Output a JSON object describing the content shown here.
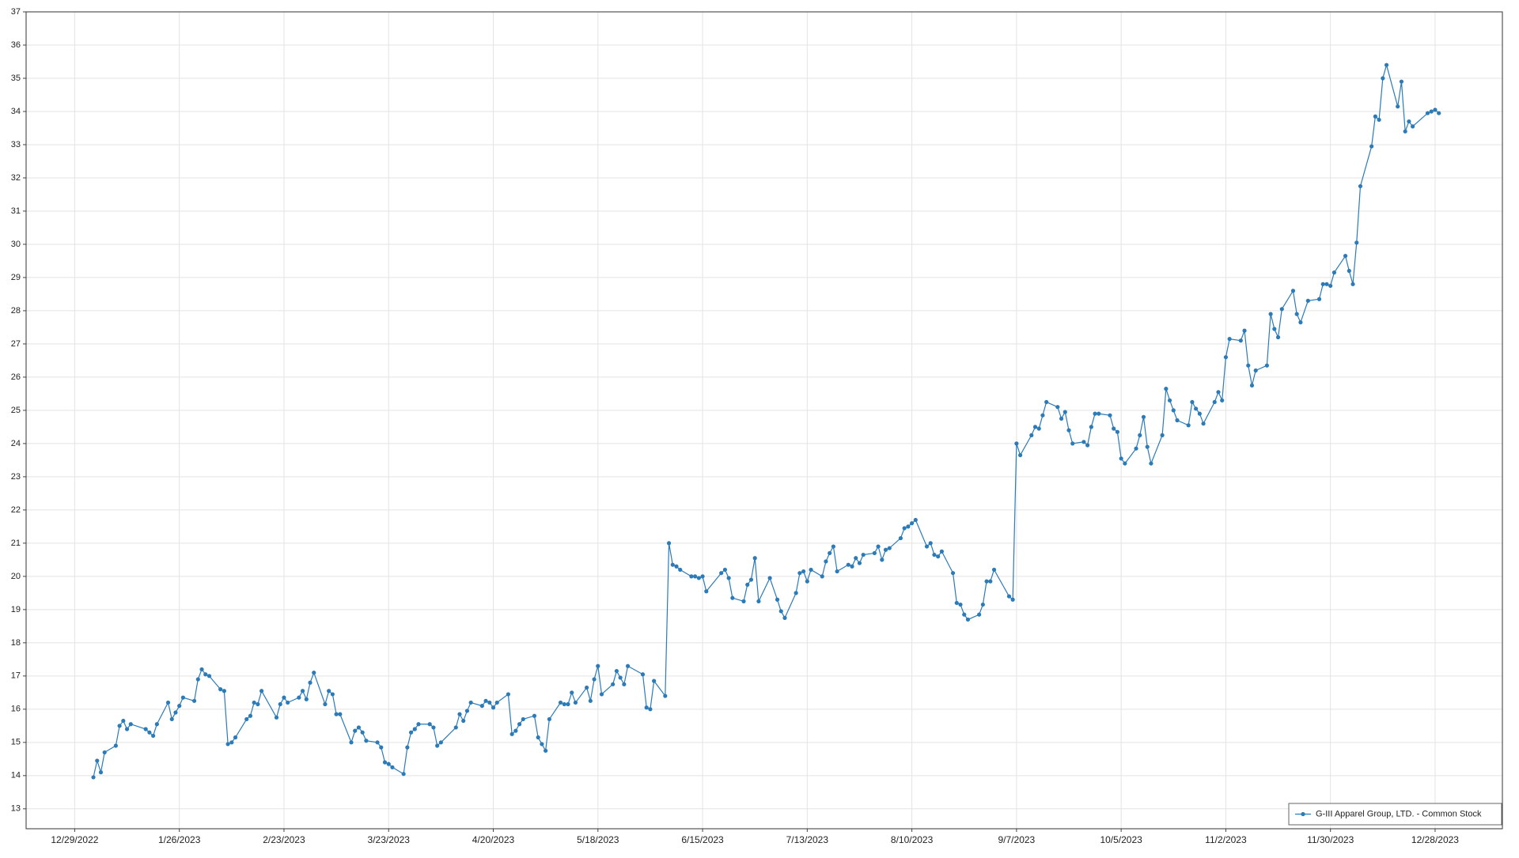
{
  "chart_data": {
    "type": "line",
    "x": [
      "1/3/2023",
      "1/4/2023",
      "1/5/2023",
      "1/6/2023",
      "1/9/2023",
      "1/10/2023",
      "1/11/2023",
      "1/12/2023",
      "1/13/2023",
      "1/17/2023",
      "1/18/2023",
      "1/19/2023",
      "1/20/2023",
      "1/23/2023",
      "1/24/2023",
      "1/25/2023",
      "1/26/2023",
      "1/27/2023",
      "1/30/2023",
      "1/31/2023",
      "2/1/2023",
      "2/2/2023",
      "2/3/2023",
      "2/6/2023",
      "2/7/2023",
      "2/8/2023",
      "2/9/2023",
      "2/10/2023",
      "2/13/2023",
      "2/14/2023",
      "2/15/2023",
      "2/16/2023",
      "2/17/2023",
      "2/21/2023",
      "2/22/2023",
      "2/23/2023",
      "2/24/2023",
      "2/27/2023",
      "2/28/2023",
      "3/1/2023",
      "3/2/2023",
      "3/3/2023",
      "3/6/2023",
      "3/7/2023",
      "3/8/2023",
      "3/9/2023",
      "3/10/2023",
      "3/13/2023",
      "3/14/2023",
      "3/15/2023",
      "3/16/2023",
      "3/17/2023",
      "3/20/2023",
      "3/21/2023",
      "3/22/2023",
      "3/23/2023",
      "3/24/2023",
      "3/27/2023",
      "3/28/2023",
      "3/29/2023",
      "3/30/2023",
      "3/31/2023",
      "4/3/2023",
      "4/4/2023",
      "4/5/2023",
      "4/6/2023",
      "4/10/2023",
      "4/11/2023",
      "4/12/2023",
      "4/13/2023",
      "4/14/2023",
      "4/17/2023",
      "4/18/2023",
      "4/19/2023",
      "4/20/2023",
      "4/21/2023",
      "4/24/2023",
      "4/25/2023",
      "4/26/2023",
      "4/27/2023",
      "4/28/2023",
      "5/1/2023",
      "5/2/2023",
      "5/3/2023",
      "5/4/2023",
      "5/5/2023",
      "5/8/2023",
      "5/9/2023",
      "5/10/2023",
      "5/11/2023",
      "5/12/2023",
      "5/15/2023",
      "5/16/2023",
      "5/17/2023",
      "5/18/2023",
      "5/19/2023",
      "5/22/2023",
      "5/23/2023",
      "5/24/2023",
      "5/25/2023",
      "5/26/2023",
      "5/30/2023",
      "5/31/2023",
      "6/1/2023",
      "6/2/2023",
      "6/5/2023",
      "6/6/2023",
      "6/7/2023",
      "6/8/2023",
      "6/9/2023",
      "6/12/2023",
      "6/13/2023",
      "6/14/2023",
      "6/15/2023",
      "6/16/2023",
      "6/20/2023",
      "6/21/2023",
      "6/22/2023",
      "6/23/2023",
      "6/26/2023",
      "6/27/2023",
      "6/28/2023",
      "6/29/2023",
      "6/30/2023",
      "7/3/2023",
      "7/5/2023",
      "7/6/2023",
      "7/7/2023",
      "7/10/2023",
      "7/11/2023",
      "7/12/2023",
      "7/13/2023",
      "7/14/2023",
      "7/17/2023",
      "7/18/2023",
      "7/19/2023",
      "7/20/2023",
      "7/21/2023",
      "7/24/2023",
      "7/25/2023",
      "7/26/2023",
      "7/27/2023",
      "7/28/2023",
      "7/31/2023",
      "8/1/2023",
      "8/2/2023",
      "8/3/2023",
      "8/4/2023",
      "8/7/2023",
      "8/8/2023",
      "8/9/2023",
      "8/10/2023",
      "8/11/2023",
      "8/14/2023",
      "8/15/2023",
      "8/16/2023",
      "8/17/2023",
      "8/18/2023",
      "8/21/2023",
      "8/22/2023",
      "8/23/2023",
      "8/24/2023",
      "8/25/2023",
      "8/28/2023",
      "8/29/2023",
      "8/30/2023",
      "8/31/2023",
      "9/1/2023",
      "9/5/2023",
      "9/6/2023",
      "9/7/2023",
      "9/8/2023",
      "9/11/2023",
      "9/12/2023",
      "9/13/2023",
      "9/14/2023",
      "9/15/2023",
      "9/18/2023",
      "9/19/2023",
      "9/20/2023",
      "9/21/2023",
      "9/22/2023",
      "9/25/2023",
      "9/26/2023",
      "9/27/2023",
      "9/28/2023",
      "9/29/2023",
      "10/2/2023",
      "10/3/2023",
      "10/4/2023",
      "10/5/2023",
      "10/6/2023",
      "10/9/2023",
      "10/10/2023",
      "10/11/2023",
      "10/12/2023",
      "10/13/2023",
      "10/16/2023",
      "10/17/2023",
      "10/18/2023",
      "10/19/2023",
      "10/20/2023",
      "10/23/2023",
      "10/24/2023",
      "10/25/2023",
      "10/26/2023",
      "10/27/2023",
      "10/30/2023",
      "10/31/2023",
      "11/1/2023",
      "11/2/2023",
      "11/3/2023",
      "11/6/2023",
      "11/7/2023",
      "11/8/2023",
      "11/9/2023",
      "11/10/2023",
      "11/13/2023",
      "11/14/2023",
      "11/15/2023",
      "11/16/2023",
      "11/17/2023",
      "11/20/2023",
      "11/21/2023",
      "11/22/2023",
      "11/24/2023",
      "11/27/2023",
      "11/28/2023",
      "11/29/2023",
      "11/30/2023",
      "12/1/2023",
      "12/4/2023",
      "12/5/2023",
      "12/6/2023",
      "12/7/2023",
      "12/8/2023",
      "12/11/2023",
      "12/12/2023",
      "12/13/2023",
      "12/14/2023",
      "12/15/2023",
      "12/18/2023",
      "12/19/2023",
      "12/20/2023",
      "12/21/2023",
      "12/22/2023",
      "12/26/2023",
      "12/27/2023",
      "12/28/2023",
      "12/29/2023"
    ],
    "series": [
      {
        "name": "G-III Apparel Group, LTD. - Common Stock",
        "color": "#2b7bb9",
        "values": [
          13.95,
          14.45,
          14.1,
          14.7,
          14.9,
          15.5,
          15.65,
          15.4,
          15.55,
          15.4,
          15.3,
          15.2,
          15.55,
          16.2,
          15.7,
          15.9,
          16.1,
          16.35,
          16.25,
          16.9,
          17.2,
          17.05,
          17.0,
          16.6,
          16.55,
          14.95,
          15.0,
          15.15,
          15.7,
          15.8,
          16.2,
          16.15,
          16.55,
          15.75,
          16.15,
          16.35,
          16.2,
          16.35,
          16.55,
          16.3,
          16.8,
          17.1,
          16.15,
          16.55,
          16.45,
          15.85,
          15.85,
          15.0,
          15.35,
          15.45,
          15.3,
          15.05,
          15.0,
          14.85,
          14.4,
          14.35,
          14.25,
          14.05,
          14.85,
          15.3,
          15.4,
          15.55,
          15.55,
          15.45,
          14.9,
          15.0,
          15.45,
          15.85,
          15.65,
          15.95,
          16.2,
          16.1,
          16.25,
          16.2,
          16.05,
          16.2,
          16.45,
          15.25,
          15.35,
          15.55,
          15.7,
          15.8,
          15.15,
          14.95,
          14.75,
          15.7,
          16.2,
          16.15,
          16.15,
          16.5,
          16.2,
          16.65,
          16.25,
          16.9,
          17.3,
          16.45,
          16.75,
          17.15,
          16.95,
          16.75,
          17.3,
          17.05,
          16.05,
          16.0,
          16.85,
          16.4,
          21.0,
          20.35,
          20.3,
          20.2,
          20.0,
          20.0,
          19.95,
          20.0,
          19.55,
          20.1,
          20.2,
          19.95,
          19.35,
          19.25,
          19.75,
          19.9,
          20.55,
          19.25,
          19.95,
          19.3,
          18.95,
          18.75,
          19.5,
          20.1,
          20.15,
          19.85,
          20.2,
          20.0,
          20.45,
          20.7,
          20.9,
          20.15,
          20.35,
          20.3,
          20.55,
          20.4,
          20.65,
          20.7,
          20.9,
          20.5,
          20.8,
          20.85,
          21.15,
          21.45,
          21.5,
          21.6,
          21.7,
          20.9,
          21.0,
          20.65,
          20.6,
          20.75,
          20.1,
          19.2,
          19.15,
          18.85,
          18.7,
          18.85,
          19.15,
          19.85,
          19.85,
          20.2,
          19.4,
          19.3,
          24.0,
          23.65,
          24.25,
          24.5,
          24.45,
          24.85,
          25.25,
          25.1,
          24.75,
          24.95,
          24.4,
          24.0,
          24.05,
          23.95,
          24.5,
          24.9,
          24.9,
          24.85,
          24.45,
          24.35,
          23.55,
          23.4,
          23.85,
          24.25,
          24.8,
          23.9,
          23.4,
          24.25,
          25.65,
          25.3,
          25.0,
          24.7,
          24.55,
          25.25,
          25.05,
          24.9,
          24.6,
          25.25,
          25.55,
          25.3,
          26.6,
          27.15,
          27.1,
          27.4,
          26.35,
          25.75,
          26.2,
          26.35,
          27.9,
          27.45,
          27.2,
          28.05,
          28.6,
          27.9,
          27.65,
          28.3,
          28.35,
          28.8,
          28.8,
          28.75,
          29.15,
          29.65,
          29.2,
          28.8,
          30.05,
          31.75,
          32.95,
          33.85,
          33.75,
          35.0,
          35.4,
          34.15,
          34.9,
          33.4,
          33.7,
          33.55,
          33.95,
          34.0,
          34.05,
          33.95
        ]
      }
    ],
    "xlim": [
      "12/16/2022",
      "1/15/2024"
    ],
    "xticks": [
      "12/29/2022",
      "1/26/2023",
      "2/23/2023",
      "3/23/2023",
      "4/20/2023",
      "5/18/2023",
      "6/15/2023",
      "7/13/2023",
      "8/10/2023",
      "9/7/2023",
      "10/5/2023",
      "11/2/2023",
      "11/30/2023",
      "12/28/2023"
    ],
    "ylim": [
      12.4,
      37
    ],
    "yticks": [
      13,
      14,
      15,
      16,
      17,
      18,
      19,
      20,
      21,
      22,
      23,
      24,
      25,
      26,
      27,
      28,
      29,
      30,
      31,
      32,
      33,
      34,
      35,
      36,
      37
    ],
    "grid": true,
    "legend": "lower right"
  }
}
